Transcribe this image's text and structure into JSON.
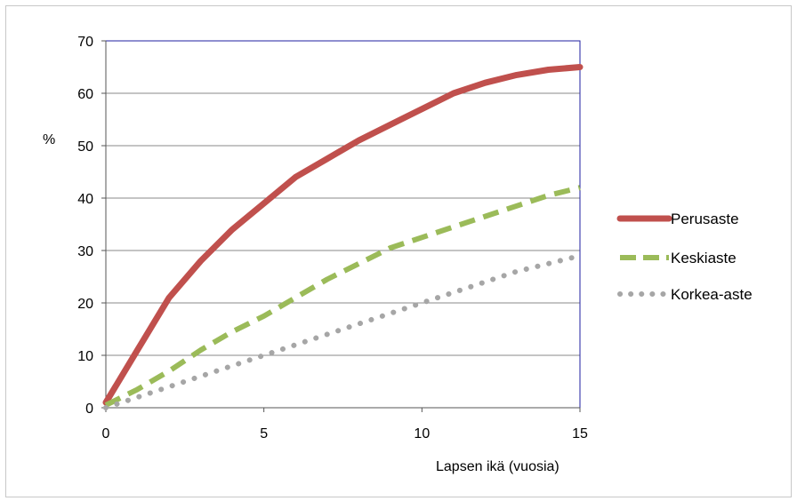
{
  "chart_data": {
    "type": "line",
    "ylabel": "%",
    "xlabel": "Lapsen ikä (vuosia)",
    "xlim": [
      0,
      15
    ],
    "ylim": [
      0,
      70
    ],
    "xticks": [
      "0",
      "5",
      "10",
      "15"
    ],
    "yticks": [
      "0",
      "10",
      "20",
      "30",
      "40",
      "50",
      "60",
      "70"
    ],
    "grid": "horizontal",
    "legend_position": "right",
    "series": [
      {
        "name": "Perusaste",
        "color": "#c0504d",
        "style": "solid",
        "x": [
          0,
          0.5,
          1,
          1.5,
          2,
          3,
          4,
          5,
          6,
          7,
          8,
          9,
          10,
          11,
          12,
          13,
          14,
          15
        ],
        "y": [
          1,
          6,
          11,
          16,
          21,
          28,
          34,
          39,
          44,
          47.5,
          51,
          54,
          57,
          60,
          62,
          63.5,
          64.5,
          65
        ]
      },
      {
        "name": "Keskiaste",
        "color": "#9bbb59",
        "style": "dashed",
        "x": [
          0,
          1,
          2,
          3,
          4,
          5,
          6,
          7,
          8,
          9,
          10,
          11,
          12,
          13,
          14,
          15
        ],
        "y": [
          0.5,
          3.5,
          7,
          11,
          14.5,
          17.5,
          21,
          24.5,
          27.5,
          30.5,
          32.5,
          34.5,
          36.5,
          38.5,
          40.5,
          42
        ]
      },
      {
        "name": "Korkea-aste",
        "color": "#a6a6a6",
        "style": "dotted",
        "x": [
          0,
          1,
          2,
          3,
          4,
          5,
          6,
          7,
          8,
          9,
          10,
          11,
          12,
          13,
          14,
          15
        ],
        "y": [
          0,
          2,
          4,
          6,
          8,
          10,
          12,
          14,
          16,
          18,
          20,
          22,
          24,
          26,
          27.5,
          29
        ]
      }
    ]
  }
}
